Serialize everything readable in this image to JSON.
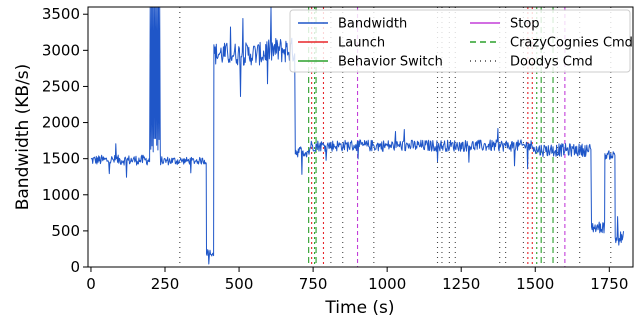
{
  "chart_data": {
    "type": "line",
    "title": "",
    "xlabel": "Time (s)",
    "ylabel": "Bandwidth (KB/s)",
    "xlim": [
      -10,
      1830
    ],
    "ylim": [
      0,
      3600
    ],
    "xticks": [
      0,
      250,
      500,
      750,
      1000,
      1250,
      1500,
      1750
    ],
    "yticks": [
      0,
      500,
      1000,
      1500,
      2000,
      2500,
      3000,
      3500
    ],
    "grid": false,
    "legend_position": "top-right",
    "legend": [
      {
        "label": "Bandwidth",
        "color": "#1f56c8",
        "style": "solid"
      },
      {
        "label": "Launch",
        "color": "#e8262a",
        "style": "solid"
      },
      {
        "label": "Behavior Switch",
        "color": "#2ca02c",
        "style": "solid"
      },
      {
        "label": "Stop",
        "color": "#c33fd9",
        "style": "solid"
      },
      {
        "label": "CrazyCognies Cmd",
        "color": "#2ca02c",
        "style": "dashed"
      },
      {
        "label": "Doodys Cmd",
        "color": "#444444",
        "style": "dotted"
      }
    ],
    "bandwidth_segments": [
      {
        "x": [
          0,
          200
        ],
        "level": 1480,
        "noise": 70
      },
      {
        "x": [
          200,
          235
        ],
        "level": 3600,
        "noise": 0,
        "burst": true
      },
      {
        "x": [
          235,
          305
        ],
        "level": 1470,
        "noise": 60
      },
      {
        "x": [
          305,
          390
        ],
        "level": 1470,
        "noise": 50
      },
      {
        "x": [
          390,
          415
        ],
        "level": 200,
        "noise": 50
      },
      {
        "x": [
          415,
          590
        ],
        "level": 2950,
        "noise": 160
      },
      {
        "x": [
          590,
          690
        ],
        "level": 3000,
        "noise": 180
      },
      {
        "x": [
          690,
          740
        ],
        "level": 1600,
        "noise": 80
      },
      {
        "x": [
          740,
          1500
        ],
        "level": 1680,
        "noise": 80
      },
      {
        "x": [
          1500,
          1690
        ],
        "level": 1620,
        "noise": 90
      },
      {
        "x": [
          1690,
          1735
        ],
        "level": 550,
        "noise": 80
      },
      {
        "x": [
          1735,
          1770
        ],
        "level": 1550,
        "noise": 60
      },
      {
        "x": [
          1770,
          1800
        ],
        "level": 400,
        "noise": 100
      }
    ],
    "launch_events": [
      745,
      785,
      1475,
      1490
    ],
    "behavior_switch_events": [
      755,
      1505
    ],
    "stop_events": [
      900,
      1600
    ],
    "crazycognies_cmd_events": [
      735,
      760,
      1520,
      1560
    ],
    "doodys_cmd_events": [
      300,
      810,
      850,
      955,
      1170,
      1185,
      1210,
      1230,
      1380,
      1400,
      1460,
      1530,
      1575,
      1650,
      1755
    ]
  }
}
